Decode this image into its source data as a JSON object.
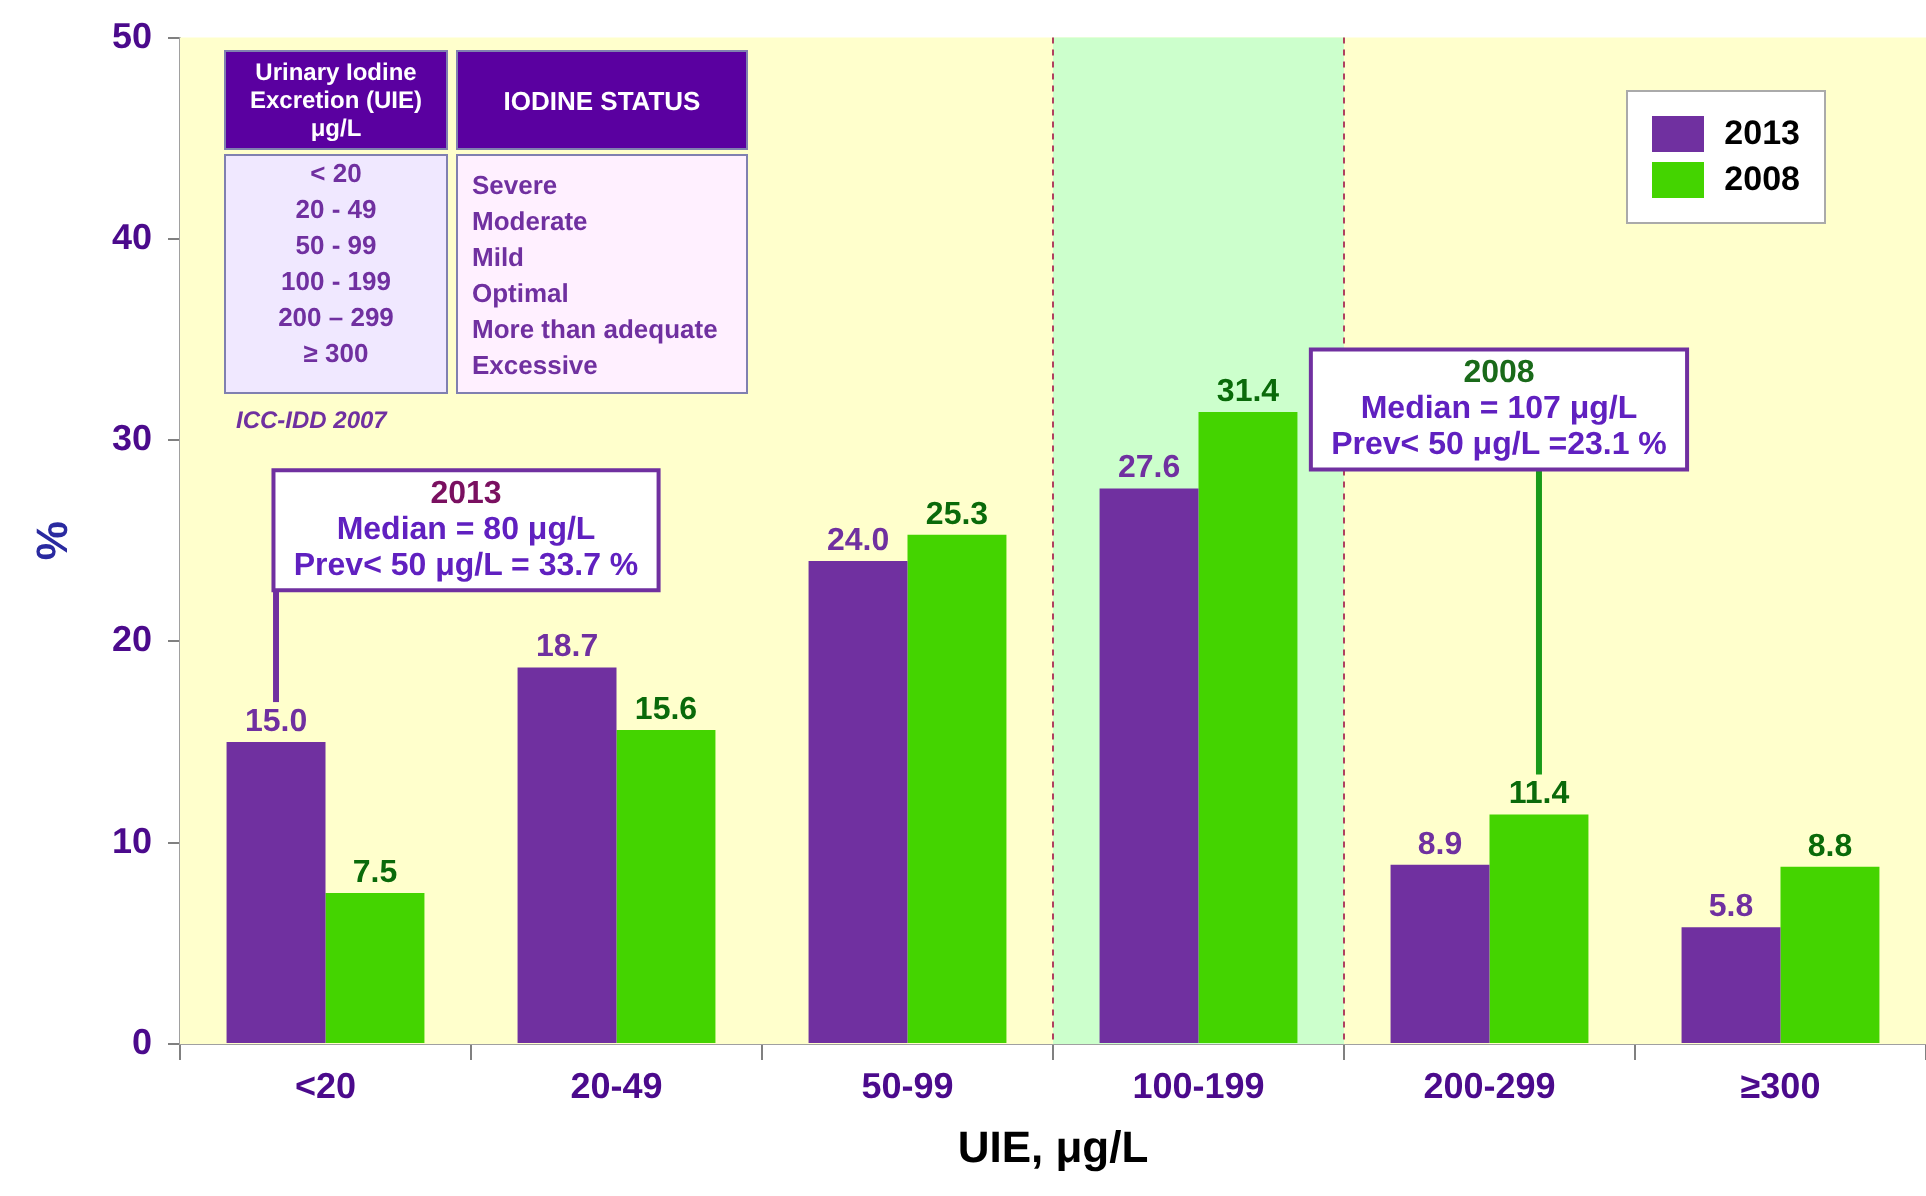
{
  "chart_data": {
    "type": "bar",
    "xlabel": "UIE, μg/L",
    "ylabel": "%",
    "categories": [
      "<20",
      "20-49",
      "50-99",
      "100-199",
      "200-299",
      "≥300"
    ],
    "series": [
      {
        "name": "2013",
        "color": "#7030a0",
        "values": [
          15.0,
          18.7,
          24.0,
          27.6,
          8.9,
          5.8
        ],
        "value_labels": [
          "15.0",
          "18.7",
          "24.0",
          "27.6",
          "8.9",
          "5.8"
        ]
      },
      {
        "name": "2008",
        "color": "#44d400",
        "values": [
          7.5,
          15.6,
          25.3,
          31.4,
          11.4,
          8.8
        ],
        "value_labels": [
          "7.5",
          "15.6",
          "25.3",
          "31.4",
          "11.4",
          "8.8"
        ]
      }
    ],
    "ylim": [
      0,
      50
    ],
    "yticks": [
      0,
      10,
      20,
      30,
      40,
      50
    ],
    "grid": false,
    "legend": "top right",
    "bands": [
      {
        "axis": "x",
        "from": "100-199",
        "to": "100-199",
        "color": "#ccffcc"
      }
    ],
    "annotations": [
      "Urinary Iodine Excretion (UIE) μg/L",
      "IODINE STATUS",
      "< 20",
      "20 - 49",
      "50 - 99",
      "100 - 199",
      "200 – 299",
      "≥ 300",
      "Severe",
      "Moderate",
      "Mild",
      "Optimal",
      "More than adequate",
      "Excessive",
      "ICC-IDD 2007",
      "2013\nMedian = 80 μg/L\nPrev< 50 μg/L = 33.7 %",
      "2008\nMedian = 107 μg/L\nPrev< 50 μg/L =23.1 %"
    ]
  }
}
